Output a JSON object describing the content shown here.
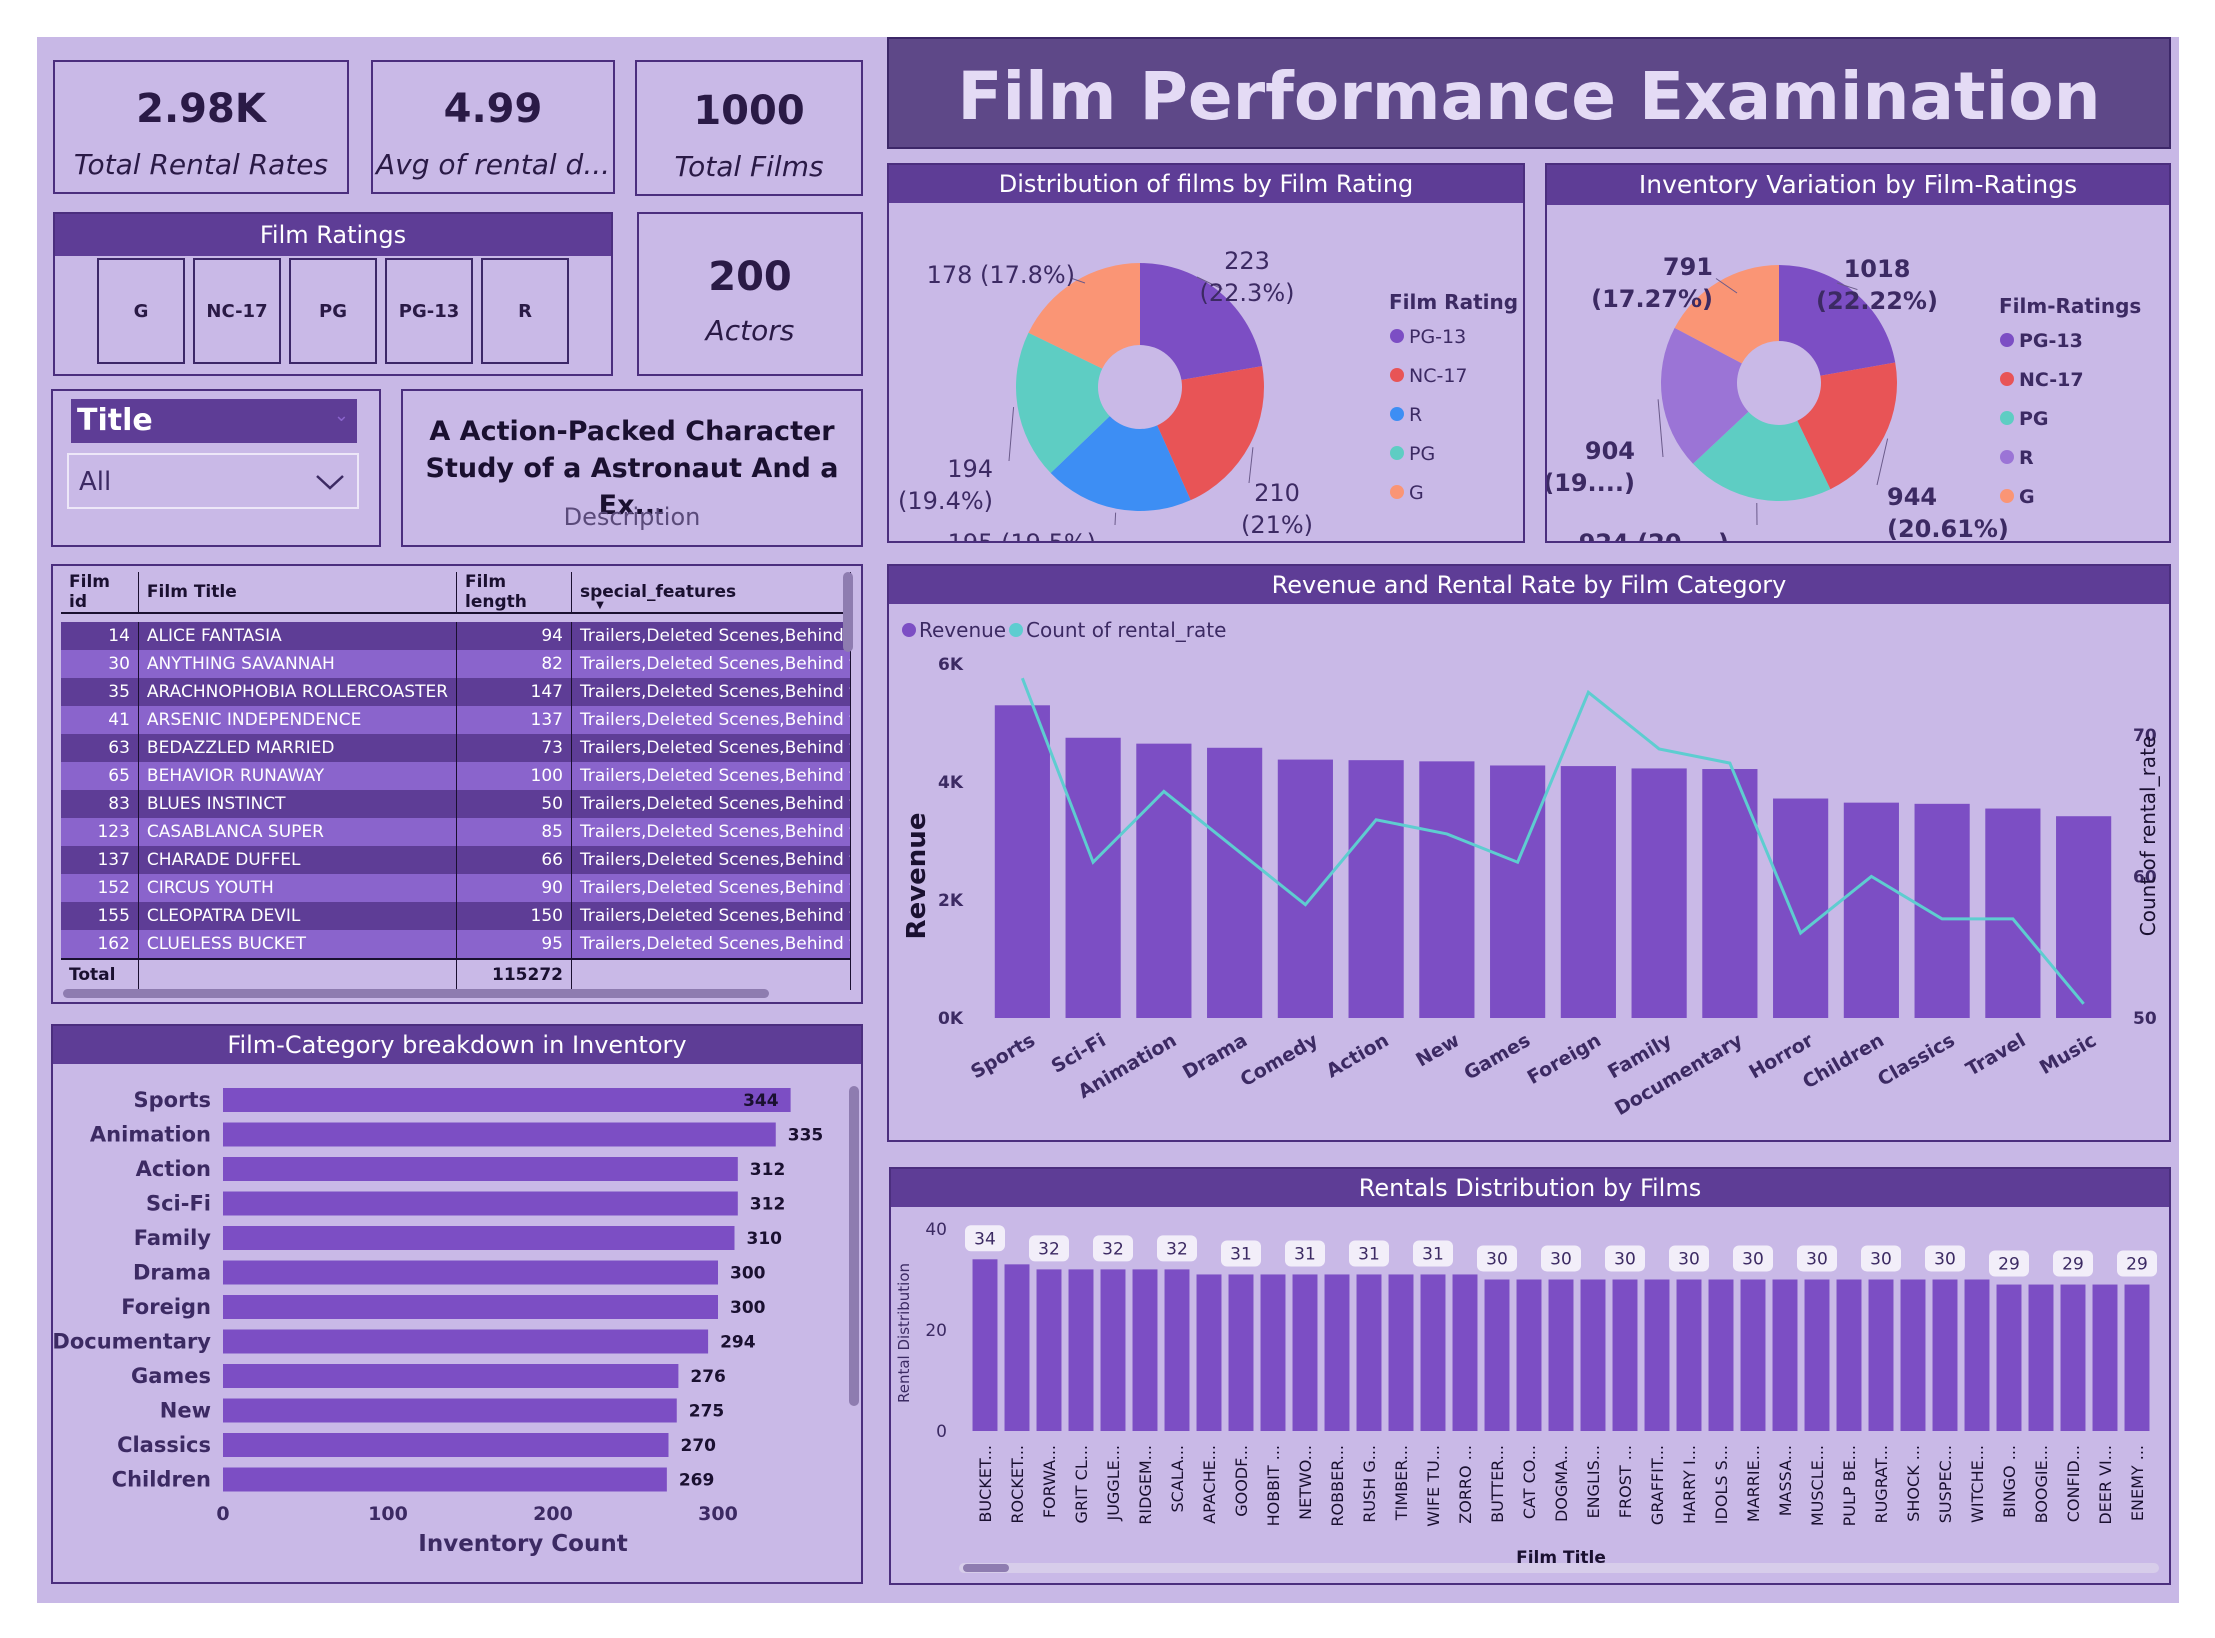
{
  "dashboard_title": "Film Performance Examination",
  "kpis": [
    {
      "value": "2.98K",
      "label": "Total Rental Rates"
    },
    {
      "value": "4.99",
      "label": "Avg of rental d..."
    },
    {
      "value": "1000",
      "label": "Total Films"
    },
    {
      "value": "200",
      "label": "Actors"
    }
  ],
  "film_ratings_slicer": {
    "title": "Film Ratings",
    "options": [
      "G",
      "NC-17",
      "PG",
      "PG-13",
      "R"
    ]
  },
  "title_slicer": {
    "label": "Title",
    "value": "All"
  },
  "description_card": {
    "text": "A Action-Packed Character Study of a Astronaut And a Ex...",
    "label": "Description"
  },
  "film_table": {
    "columns": [
      "Film id",
      "Film Title",
      "Film length",
      "special_features"
    ],
    "rows": [
      {
        "id": "14",
        "title": "ALICE FANTASIA",
        "length": "94",
        "features": "Trailers,Deleted Scenes,Behind the Scenes"
      },
      {
        "id": "30",
        "title": "ANYTHING SAVANNAH",
        "length": "82",
        "features": "Trailers,Deleted Scenes,Behind the Scenes"
      },
      {
        "id": "35",
        "title": "ARACHNOPHOBIA ROLLERCOASTER",
        "length": "147",
        "features": "Trailers,Deleted Scenes,Behind the Scenes"
      },
      {
        "id": "41",
        "title": "ARSENIC INDEPENDENCE",
        "length": "137",
        "features": "Trailers,Deleted Scenes,Behind the Scenes"
      },
      {
        "id": "63",
        "title": "BEDAZZLED MARRIED",
        "length": "73",
        "features": "Trailers,Deleted Scenes,Behind the Scenes"
      },
      {
        "id": "65",
        "title": "BEHAVIOR RUNAWAY",
        "length": "100",
        "features": "Trailers,Deleted Scenes,Behind the Scenes"
      },
      {
        "id": "83",
        "title": "BLUES INSTINCT",
        "length": "50",
        "features": "Trailers,Deleted Scenes,Behind the Scenes"
      },
      {
        "id": "123",
        "title": "CASABLANCA SUPER",
        "length": "85",
        "features": "Trailers,Deleted Scenes,Behind the Scenes"
      },
      {
        "id": "137",
        "title": "CHARADE DUFFEL",
        "length": "66",
        "features": "Trailers,Deleted Scenes,Behind the Scenes"
      },
      {
        "id": "152",
        "title": "CIRCUS YOUTH",
        "length": "90",
        "features": "Trailers,Deleted Scenes,Behind the Scenes"
      },
      {
        "id": "155",
        "title": "CLEOPATRA DEVIL",
        "length": "150",
        "features": "Trailers,Deleted Scenes,Behind the Scenes"
      },
      {
        "id": "162",
        "title": "CLUELESS BUCKET",
        "length": "95",
        "features": "Trailers,Deleted Scenes,Behind the Scenes"
      }
    ],
    "total_label": "Total",
    "total_length": "115272"
  },
  "colors": {
    "canvas": "#c8b8e6",
    "header": "#5e3d96",
    "bar": "#7c4ec4",
    "line": "#5ecdd0"
  },
  "chart_data": [
    {
      "id": "pie_rating",
      "type": "pie",
      "title": "Distribution of films by Film Rating",
      "legend_title": "Film Rating",
      "slices": [
        {
          "name": "PG-13",
          "value": 223,
          "label": [
            "223",
            "(22.3%)"
          ],
          "color": "#7c4ec4"
        },
        {
          "name": "NC-17",
          "value": 210,
          "label": [
            "210",
            "(21%)"
          ],
          "color": "#e85456"
        },
        {
          "name": "R",
          "value": 195,
          "label": [
            "195 (19.5%)"
          ],
          "color": "#3d8ef4"
        },
        {
          "name": "PG",
          "value": 194,
          "label": [
            "194",
            "(19.4%)"
          ],
          "color": "#5ecdc3"
        },
        {
          "name": "G",
          "value": 178,
          "label": [
            "178 (17.8%)"
          ],
          "color": "#fa9575"
        }
      ]
    },
    {
      "id": "pie_inventory",
      "type": "pie",
      "title": "Inventory Variation by Film-Ratings",
      "legend_title": "Film-Ratings",
      "slices": [
        {
          "name": "PG-13",
          "value": 1018,
          "label": [
            "1018",
            "(22.22%)"
          ],
          "color": "#7c4ec4"
        },
        {
          "name": "NC-17",
          "value": 944,
          "label": [
            "944",
            "(20.61%)"
          ],
          "color": "#e85456"
        },
        {
          "name": "PG",
          "value": 924,
          "label": [
            "924 (20....)"
          ],
          "color": "#5ecdc3"
        },
        {
          "name": "R",
          "value": 904,
          "label": [
            "904",
            "(19....)"
          ],
          "color": "#9b74d6"
        },
        {
          "name": "G",
          "value": 791,
          "label": [
            "791",
            "(17.27%)"
          ],
          "color": "#fa9575"
        }
      ]
    },
    {
      "id": "combo_category",
      "type": "bar",
      "title": "Revenue and Rental Rate by Film Category",
      "categories": [
        "Sports",
        "Sci-Fi",
        "Animation",
        "Drama",
        "Comedy",
        "Action",
        "New",
        "Games",
        "Foreign",
        "Family",
        "Documentary",
        "Horror",
        "Children",
        "Classics",
        "Travel",
        "Music"
      ],
      "series": [
        {
          "name": "Revenue",
          "axis": "left",
          "values": [
            5300,
            4750,
            4650,
            4580,
            4380,
            4370,
            4350,
            4280,
            4270,
            4230,
            4220,
            3720,
            3650,
            3630,
            3550,
            3420
          ]
        },
        {
          "name": "Count of rental_rate",
          "axis": "right",
          "values": [
            74,
            61,
            66,
            62,
            58,
            64,
            63,
            61,
            73,
            69,
            68,
            56,
            60,
            57,
            57,
            51
          ]
        }
      ],
      "ylabel": "Revenue",
      "y2label": "Count of rental_rate",
      "ylim": [
        0,
        6000
      ],
      "yticks": [
        "0K",
        "2K",
        "4K",
        "6K"
      ],
      "y2lim": [
        50,
        75
      ],
      "y2ticks": [
        "50",
        "60",
        "70"
      ]
    },
    {
      "id": "bar_inventory",
      "type": "bar",
      "orientation": "horizontal",
      "title": "Film-Category breakdown in Inventory",
      "categories": [
        "Sports",
        "Animation",
        "Action",
        "Sci-Fi",
        "Family",
        "Drama",
        "Foreign",
        "Documentary",
        "Games",
        "New",
        "Classics",
        "Children"
      ],
      "values": [
        344,
        335,
        312,
        312,
        310,
        300,
        300,
        294,
        276,
        275,
        270,
        269
      ],
      "xlabel": "Inventory Count",
      "xticks": [
        "0",
        "100",
        "200",
        "300"
      ],
      "xlim": [
        0,
        350
      ]
    },
    {
      "id": "bar_rentals",
      "type": "bar",
      "title": "Rentals Distribution by Films",
      "categories": [
        "BUCKET...",
        "ROCKET...",
        "FORWA...",
        "GRIT CL...",
        "JUGGLE...",
        "RIDGEM...",
        "SCALA...",
        "APACHE...",
        "GOODF...",
        "HOBBIT ...",
        "NETWO...",
        "ROBBER...",
        "RUSH G...",
        "TIMBER...",
        "WIFE TU...",
        "ZORRO ...",
        "BUTTER...",
        "CAT CO...",
        "DOGMA...",
        "ENGLIS...",
        "FROST ...",
        "GRAFFIT...",
        "HARRY I...",
        "IDOLS S...",
        "MARRIE...",
        "MASSA...",
        "MUSCLE...",
        "PULP BE...",
        "RUGRAT...",
        "SHOCK ...",
        "SUSPEC...",
        "WITCHE...",
        "BINGO ...",
        "BOOGIE...",
        "CONFID...",
        "DEER VI...",
        "ENEMY ..."
      ],
      "values": [
        34,
        33,
        32,
        32,
        32,
        32,
        32,
        31,
        31,
        31,
        31,
        31,
        31,
        31,
        31,
        31,
        30,
        30,
        30,
        30,
        30,
        30,
        30,
        30,
        30,
        30,
        30,
        30,
        30,
        30,
        30,
        30,
        29,
        29,
        29,
        29,
        29
      ],
      "labels_shown": [
        "34",
        "32",
        "32",
        "32",
        "31",
        "31",
        "31",
        "31",
        "30",
        "30",
        "30",
        "30",
        "30",
        "30",
        "30",
        "30",
        "29",
        "29",
        "29"
      ],
      "xlabel": "Film Title",
      "ylabel": "Rental Distribution",
      "ylim": [
        0,
        40
      ],
      "yticks": [
        "0",
        "20",
        "40"
      ]
    }
  ]
}
